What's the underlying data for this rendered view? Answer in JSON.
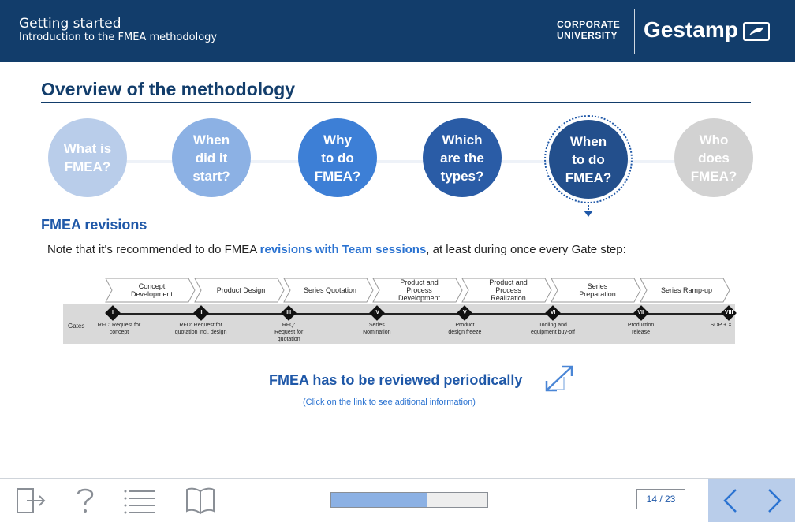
{
  "header": {
    "title": "Getting started",
    "subtitle": "Introduction to the FMEA methodology",
    "corporate_line1": "CORPORATE",
    "corporate_line2": "UNIVERSITY",
    "brand": "Gestamp"
  },
  "section_title": "Overview of the methodology",
  "circles": [
    {
      "line1": "What is",
      "line2": "FMEA?",
      "line3": ""
    },
    {
      "line1": "When",
      "line2": "did it",
      "line3": "start?"
    },
    {
      "line1": "Why",
      "line2": "to do",
      "line3": "FMEA?"
    },
    {
      "line1": "Which",
      "line2": "are the",
      "line3": "types?"
    },
    {
      "line1": "When",
      "line2": "to do",
      "line3": "FMEA?"
    },
    {
      "line1": "Who",
      "line2": "does",
      "line3": "FMEA?"
    }
  ],
  "revisions": {
    "title": "FMEA revisions",
    "note_before": "Note that it's recommended to do FMEA ",
    "note_highlight": "revisions with Team sessions",
    "note_after": ", at least during once every Gate step:"
  },
  "diagram": {
    "phases": [
      "Concept\nDevelopment",
      "Product Design",
      "Series Quotation",
      "Product and\nProcess\nDevelopment",
      "Product and\nProcess\nRealization",
      "Series\nPreparation",
      "Series Ramp-up"
    ],
    "gates_label": "Gates",
    "gates": [
      {
        "num": "I",
        "label": "RFC: Request for\nconcept"
      },
      {
        "num": "II",
        "label": "RFD: Request for\nquotation incl. design"
      },
      {
        "num": "III",
        "label": "RFQ:\nRequest for\nquotation"
      },
      {
        "num": "IV",
        "label": "Series\nNomination"
      },
      {
        "num": "V",
        "label": "Product\ndesign freeze"
      },
      {
        "num": "VI",
        "label": "Tooling and\nequipment buy-off"
      },
      {
        "num": "VII",
        "label": "Production\nrelease"
      },
      {
        "num": "VIII",
        "label": "SOP + X"
      }
    ]
  },
  "link": {
    "text": "FMEA has to be reviewed periodically",
    "hint": "(Click on the link to see aditional information)"
  },
  "footer": {
    "progress": 0.61,
    "page_indicator": "14 / 23"
  },
  "colors": {
    "header_bg": "#123d6b",
    "accent": "#1f58a8",
    "nav_bg": "#b9cdea"
  }
}
